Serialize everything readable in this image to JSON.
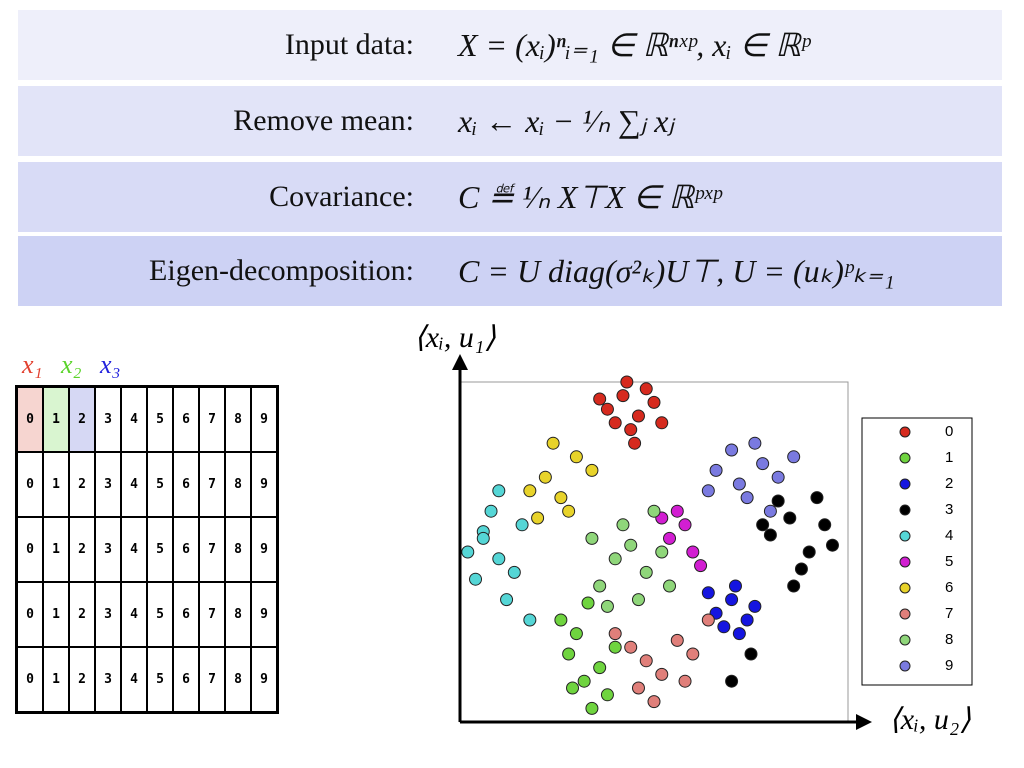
{
  "steps": [
    {
      "label": "Input data:",
      "formula": "X = (xᵢ)ⁿᵢ₌₁ ∈ ℝⁿˣᵖ, xᵢ ∈ ℝᵖ"
    },
    {
      "label": "Remove mean:",
      "formula": "xᵢ ← xᵢ − ¹⁄ₙ ∑ⱼ xⱼ"
    },
    {
      "label": "Covariance:",
      "formula": "C ≝ ¹⁄ₙ X⊤X ∈ ℝᵖˣᵖ"
    },
    {
      "label": "Eigen-decomposition:",
      "formula": "C = U diag(σ²ₖ)U⊤, U = (uₖ)ᵖₖ₌₁"
    }
  ],
  "digits": {
    "labels": [
      {
        "text": "x₁",
        "color": "#e2402f"
      },
      {
        "text": "x₂",
        "color": "#5ad42a"
      },
      {
        "text": "x₃",
        "color": "#2222dd"
      }
    ],
    "rows": [
      [
        "0",
        "1",
        "2",
        "3",
        "4",
        "5",
        "6",
        "7",
        "8",
        "9"
      ],
      [
        "0",
        "1",
        "2",
        "3",
        "4",
        "5",
        "6",
        "7",
        "8",
        "9"
      ],
      [
        "0",
        "1",
        "2",
        "3",
        "4",
        "5",
        "6",
        "7",
        "8",
        "9"
      ],
      [
        "0",
        "1",
        "2",
        "3",
        "4",
        "5",
        "6",
        "7",
        "8",
        "9"
      ],
      [
        "0",
        "1",
        "2",
        "3",
        "4",
        "5",
        "6",
        "7",
        "8",
        "9"
      ]
    ]
  },
  "chart_data": {
    "type": "scatter",
    "x_label": "⟨xᵢ, u₂⟩",
    "y_label": "⟨xᵢ, u₁⟩",
    "xlim": [
      0,
      100
    ],
    "ylim": [
      0,
      100
    ],
    "series": [
      {
        "name": "0",
        "color": "#d62a1e",
        "x": [
          38,
          42,
          46,
          50,
          44,
          40,
          48,
          52,
          36,
          45,
          43
        ],
        "y": [
          92,
          96,
          90,
          94,
          86,
          88,
          98,
          88,
          95,
          82,
          100
        ]
      },
      {
        "name": "1",
        "color": "#6fd43f",
        "x": [
          28,
          32,
          36,
          30,
          38,
          34,
          26,
          40,
          33,
          29
        ],
        "y": [
          20,
          12,
          16,
          26,
          8,
          4,
          30,
          22,
          35,
          10
        ]
      },
      {
        "name": "2",
        "color": "#1515e0",
        "x": [
          66,
          70,
          74,
          68,
          72,
          76,
          64,
          71
        ],
        "y": [
          32,
          36,
          30,
          28,
          26,
          34,
          38,
          40
        ]
      },
      {
        "name": "3",
        "color": "#000000",
        "x": [
          80,
          85,
          90,
          88,
          82,
          94,
          86,
          78,
          92,
          96,
          75,
          70
        ],
        "y": [
          55,
          60,
          50,
          45,
          65,
          58,
          40,
          58,
          66,
          52,
          20,
          12
        ]
      },
      {
        "name": "4",
        "color": "#55d6d6",
        "x": [
          2,
          6,
          10,
          14,
          8,
          4,
          12,
          16,
          18,
          10,
          6
        ],
        "y": [
          50,
          56,
          48,
          44,
          62,
          42,
          36,
          58,
          30,
          68,
          54
        ]
      },
      {
        "name": "5",
        "color": "#d21ed2",
        "x": [
          54,
          58,
          60,
          56,
          62,
          52
        ],
        "y": [
          54,
          58,
          50,
          62,
          46,
          60
        ]
      },
      {
        "name": "6",
        "color": "#e8d32a",
        "x": [
          18,
          22,
          26,
          30,
          24,
          20,
          28,
          34
        ],
        "y": [
          68,
          72,
          66,
          78,
          82,
          60,
          62,
          74
        ]
      },
      {
        "name": "7",
        "color": "#e07f7a",
        "x": [
          44,
          48,
          52,
          56,
          46,
          60,
          40,
          64,
          50,
          58
        ],
        "y": [
          22,
          18,
          14,
          24,
          10,
          20,
          26,
          30,
          6,
          12
        ]
      },
      {
        "name": "8",
        "color": "#8fd67a",
        "x": [
          40,
          44,
          48,
          36,
          42,
          52,
          38,
          46,
          50,
          34,
          54
        ],
        "y": [
          48,
          52,
          44,
          40,
          58,
          50,
          34,
          36,
          62,
          54,
          40
        ]
      },
      {
        "name": "9",
        "color": "#7a7ae0",
        "x": [
          66,
          72,
          78,
          82,
          74,
          70,
          86,
          64,
          76,
          80
        ],
        "y": [
          74,
          70,
          76,
          72,
          66,
          80,
          78,
          68,
          82,
          62
        ]
      }
    ]
  }
}
